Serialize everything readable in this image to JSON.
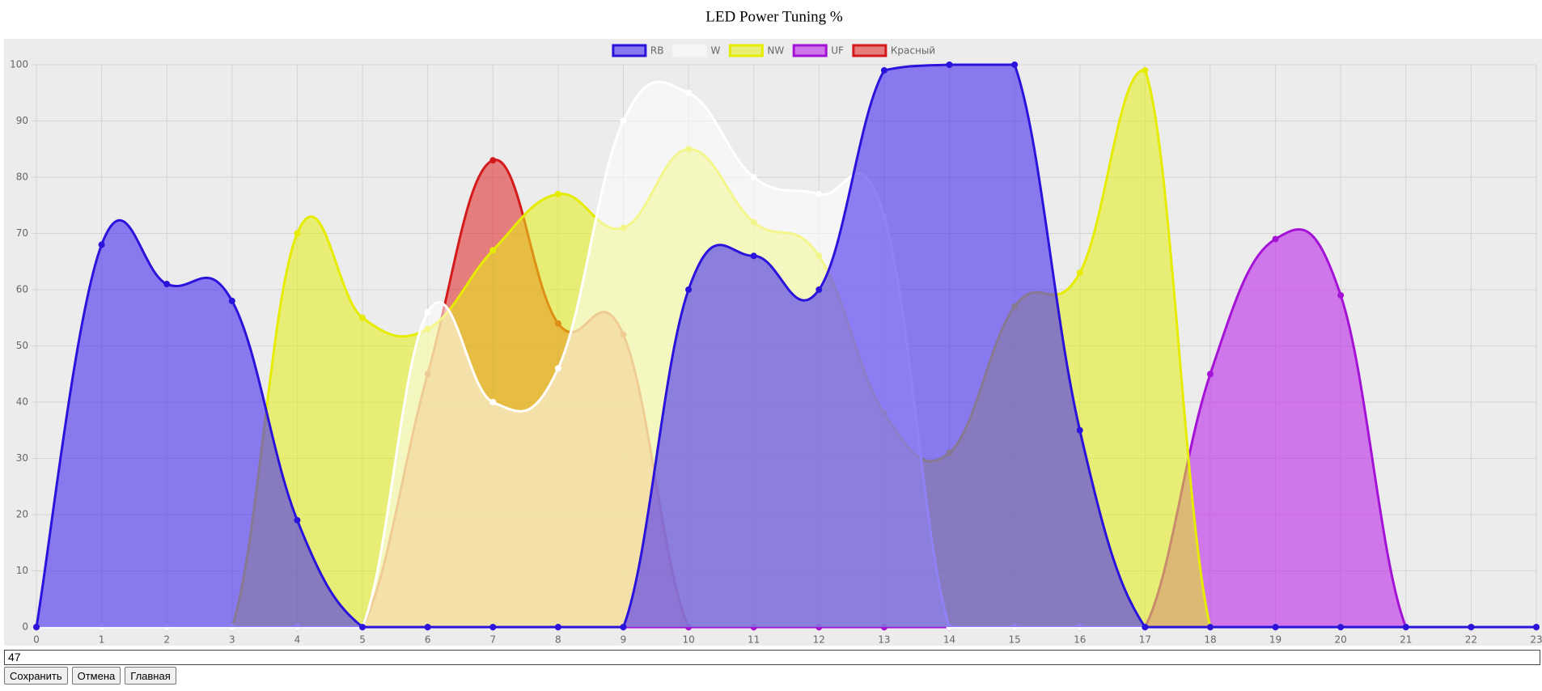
{
  "chart_data": {
    "type": "area",
    "title": "LED Power Tuning %",
    "categories": [
      "0",
      "1",
      "2",
      "3",
      "4",
      "5",
      "6",
      "7",
      "8",
      "9",
      "10",
      "11",
      "12",
      "13",
      "14",
      "15",
      "16",
      "17",
      "18",
      "19",
      "20",
      "21",
      "22",
      "23"
    ],
    "series": [
      {
        "name": "RB",
        "color": "#2a14dc",
        "fill": "rgba(70,45,240,0.6)",
        "values": [
          0,
          68,
          61,
          58,
          19,
          0,
          0,
          0,
          0,
          0,
          60,
          66,
          60,
          99,
          100,
          100,
          35,
          0,
          0,
          0,
          0,
          0,
          0,
          0
        ]
      },
      {
        "name": "W",
        "color": "#ffffff",
        "fill": "rgba(255,255,255,0.55)",
        "values": [
          0,
          0,
          0,
          0,
          0,
          0,
          56,
          40,
          46,
          90,
          95,
          80,
          77,
          73,
          0,
          0,
          0,
          0,
          0,
          0,
          0,
          0,
          0,
          0
        ]
      },
      {
        "name": "NW",
        "color": "#e6ec00",
        "fill": "rgba(230,240,20,0.55)",
        "values": [
          0,
          0,
          0,
          0,
          70,
          55,
          53,
          67,
          77,
          71,
          85,
          72,
          66,
          38,
          31,
          57,
          63,
          99,
          0,
          0,
          0,
          0,
          0,
          0
        ]
      },
      {
        "name": "UF",
        "color": "#a412d6",
        "fill": "rgba(190,40,235,0.6)",
        "values": [
          0,
          0,
          0,
          0,
          0,
          0,
          0,
          0,
          0,
          0,
          0,
          0,
          0,
          0,
          0,
          0,
          0,
          0,
          45,
          69,
          59,
          0,
          0,
          0
        ]
      },
      {
        "name": "Красный",
        "color": "#d41a1a",
        "fill": "rgba(225,35,35,0.55)",
        "values": [
          0,
          0,
          0,
          0,
          0,
          0,
          45,
          83,
          54,
          52,
          0,
          0,
          0,
          0,
          0,
          0,
          0,
          0,
          0,
          0,
          0,
          0,
          0,
          0
        ]
      }
    ],
    "ylim": [
      0,
      100
    ],
    "yticks": [
      0,
      10,
      20,
      30,
      40,
      50,
      60,
      70,
      80,
      90,
      100
    ],
    "grid": true,
    "legend": "top"
  },
  "form": {
    "input_value": "47",
    "buttons": [
      "Сохранить",
      "Отмена",
      "Главная"
    ]
  }
}
